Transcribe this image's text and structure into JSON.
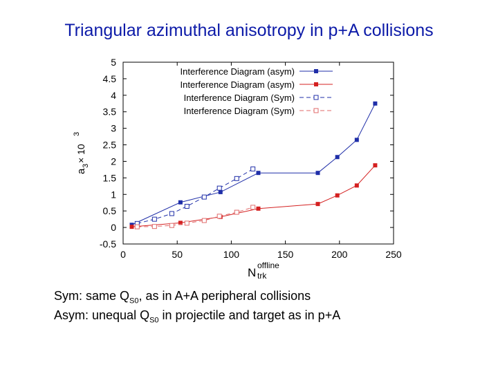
{
  "slide": {
    "title": "Triangular azimuthal anisotropy in p+A collisions",
    "caption_sym": {
      "prefix": "Sym:  same Q",
      "sub": "S0",
      "suffix": ", as in A+A peripheral collisions"
    },
    "caption_asym": {
      "prefix": "Asym: unequal Q",
      "sub": "S0",
      "suffix": " in projectile and target as in p+A"
    }
  },
  "chart_data": {
    "type": "line",
    "title": "",
    "xlabel": {
      "main": "N",
      "sub": "trk",
      "sup": "offline"
    },
    "ylabel": {
      "main": "a",
      "sub": "3",
      "mid": " × 10",
      "sup": "3"
    },
    "xlim": [
      0,
      250
    ],
    "ylim": [
      -0.5,
      5
    ],
    "xticks": [
      0,
      50,
      100,
      150,
      200,
      250
    ],
    "yticks": [
      -0.5,
      0,
      0.5,
      1,
      1.5,
      2,
      2.5,
      3,
      3.5,
      4,
      4.5,
      5
    ],
    "grid": false,
    "legend_position": "top-right",
    "series": [
      {
        "name": "Interference Diagram (asym)",
        "color": "#1f2ea8",
        "marker": "filled-square",
        "dash": "solid",
        "x": [
          8,
          53,
          90,
          125,
          180,
          198,
          216,
          233
        ],
        "y": [
          0.08,
          0.76,
          1.07,
          1.65,
          1.65,
          2.13,
          2.65,
          3.75
        ]
      },
      {
        "name": "Interference Diagram (asym)",
        "color": "#d42020",
        "marker": "filled-square",
        "dash": "solid",
        "x": [
          8,
          53,
          90,
          125,
          180,
          198,
          216,
          233
        ],
        "y": [
          0.02,
          0.14,
          0.32,
          0.57,
          0.71,
          0.97,
          1.27,
          1.88
        ]
      },
      {
        "name": "Interference Diagram (Sym)",
        "color": "#1f2ea8",
        "marker": "open-square",
        "dash": "dashed",
        "x": [
          13,
          29,
          45,
          59,
          75,
          89,
          105,
          120
        ],
        "y": [
          0.12,
          0.25,
          0.42,
          0.64,
          0.92,
          1.19,
          1.48,
          1.77
        ]
      },
      {
        "name": "Interference Diagram (Sym)",
        "color": "#e06a6a",
        "marker": "open-square",
        "dash": "dashed",
        "x": [
          13,
          29,
          45,
          59,
          75,
          89,
          105,
          120
        ],
        "y": [
          0.02,
          0.03,
          0.06,
          0.13,
          0.21,
          0.34,
          0.46,
          0.61
        ]
      }
    ]
  }
}
